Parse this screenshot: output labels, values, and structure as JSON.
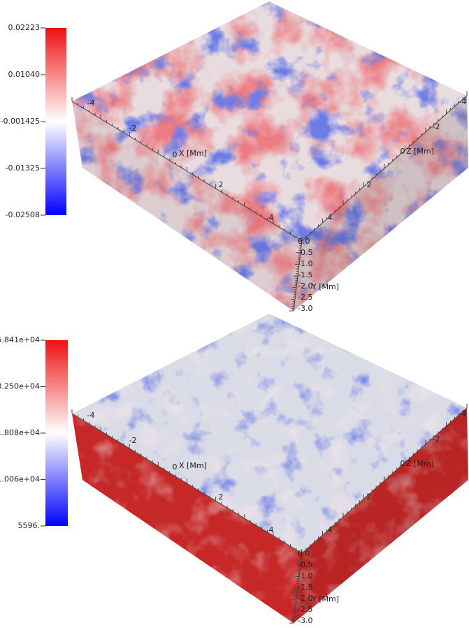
{
  "panels": [
    {
      "colorbar": {
        "ticks": [
          "0.02223",
          "0.01040",
          "-0.001425",
          "-0.01325",
          "-0.02508"
        ]
      },
      "axes": {
        "x_label": "X [Mm]",
        "x_ticks": [
          "-4",
          "-2",
          "0",
          "2",
          "4"
        ],
        "z_label": "Z [Mm]",
        "z_ticks": [
          "-4",
          "-2",
          "0",
          "2",
          "4"
        ],
        "y_label": "Y [Mm]",
        "y_ticks": [
          "0.0",
          "-0.5",
          "-1.0",
          "-1.5",
          "-2.0",
          "-2.5",
          "-3.0"
        ]
      }
    },
    {
      "colorbar": {
        "ticks": [
          "5.841e+04",
          "3.250e+04",
          "1.808e+04",
          "1.006e+04",
          "5596."
        ]
      },
      "axes": {
        "x_label": "X [Mm]",
        "x_ticks": [
          "-4",
          "-2",
          "0",
          "2",
          "4"
        ],
        "z_label": "Z [Mm]",
        "z_ticks": [
          "-4",
          "-2",
          "0",
          "2",
          "4"
        ],
        "y_label": "Y [Mm]",
        "y_ticks": [
          "0.0",
          "-0.5",
          "-1.0",
          "-1.5",
          "-2.0",
          "-2.5",
          "-3.0"
        ]
      }
    }
  ]
}
